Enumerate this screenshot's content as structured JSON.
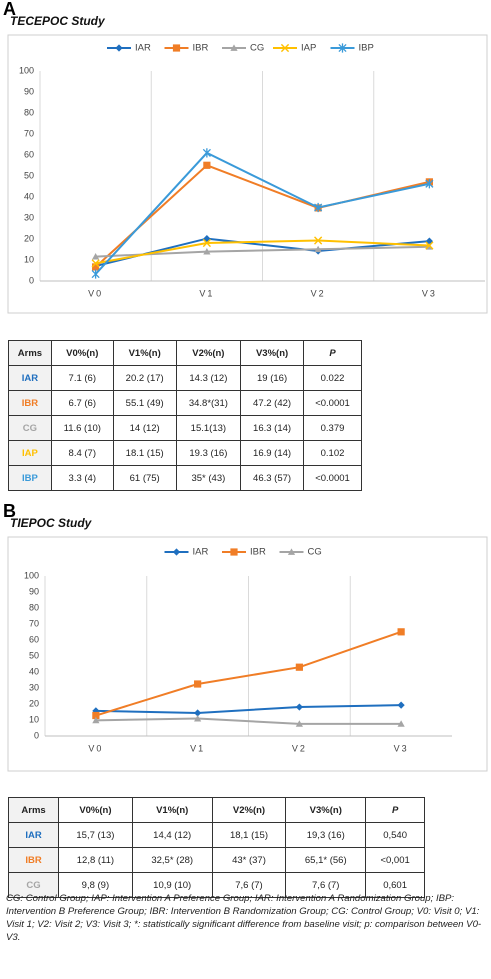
{
  "chart_data": [
    {
      "type": "line",
      "panel": "A",
      "title": "TECEPOC Study",
      "categories": [
        "V0",
        "V1",
        "V2",
        "V3"
      ],
      "series": [
        {
          "name": "IAR",
          "color": "#1f6fbf",
          "marker": "diamond",
          "values": [
            7.1,
            20.2,
            14.3,
            19
          ]
        },
        {
          "name": "IBR",
          "color": "#f07d26",
          "marker": "square",
          "values": [
            6.7,
            55.1,
            34.8,
            47.2
          ]
        },
        {
          "name": "CG",
          "color": "#a5a5a5",
          "marker": "triangle",
          "values": [
            11.6,
            14,
            15.1,
            16.3
          ]
        },
        {
          "name": "IAP",
          "color": "#ffc000",
          "marker": "x",
          "values": [
            8.4,
            18.1,
            19.3,
            16.9
          ]
        },
        {
          "name": "IBP",
          "color": "#3a9ad9",
          "marker": "star",
          "values": [
            3.3,
            61,
            35,
            46.3
          ]
        }
      ],
      "ylim": [
        0,
        100
      ],
      "yticks": [
        0,
        10,
        20,
        30,
        40,
        50,
        60,
        70,
        80,
        90,
        100
      ],
      "grid": "x",
      "legend": "top"
    },
    {
      "type": "line",
      "panel": "B",
      "title": "TIEPOC Study",
      "categories": [
        "V0",
        "V1",
        "V2",
        "V3"
      ],
      "series": [
        {
          "name": "IAR",
          "color": "#1f6fbf",
          "marker": "diamond",
          "values": [
            15.7,
            14.4,
            18.1,
            19.3
          ]
        },
        {
          "name": "IBR",
          "color": "#f07d26",
          "marker": "square",
          "values": [
            12.8,
            32.5,
            43,
            65.1
          ]
        },
        {
          "name": "CG",
          "color": "#a5a5a5",
          "marker": "triangle",
          "values": [
            9.8,
            10.9,
            7.6,
            7.6
          ]
        }
      ],
      "ylim": [
        0,
        100
      ],
      "yticks": [
        0,
        10,
        20,
        30,
        40,
        50,
        60,
        70,
        80,
        90,
        100
      ],
      "grid": "x",
      "legend": "top"
    }
  ],
  "tables": [
    {
      "header": [
        "Arms",
        "V0%(n)",
        "V1%(n)",
        "V2%(n)",
        "V3%(n)",
        "P"
      ],
      "rows": [
        [
          "IAR",
          "7.1 (6)",
          "20.2 (17)",
          "14.3 (12)",
          "19 (16)",
          "0.022"
        ],
        [
          "IBR",
          "6.7 (6)",
          "55.1 (49)",
          "34.8*(31)",
          "47.2 (42)",
          "<0.0001"
        ],
        [
          "CG",
          "11.6 (10)",
          "14 (12)",
          "15.1(13)",
          "16.3 (14)",
          "0.379"
        ],
        [
          "IAP",
          "8.4 (7)",
          "18.1 (15)",
          "19.3 (16)",
          "16.9 (14)",
          "0.102"
        ],
        [
          "IBP",
          "3.3 (4)",
          "61 (75)",
          "35* (43)",
          "46.3 (57)",
          "<0.0001"
        ]
      ]
    },
    {
      "header": [
        "Arms",
        "V0%(n)",
        "V1%(n)",
        "V2%(n)",
        "V3%(n)",
        "P"
      ],
      "rows": [
        [
          "IAR",
          "15,7 (13)",
          "14,4 (12)",
          "18,1 (15)",
          "19,3 (16)",
          "0,540"
        ],
        [
          "IBR",
          "12,8 (11)",
          "32,5* (28)",
          "43* (37)",
          "65,1* (56)",
          "<0,001"
        ],
        [
          "CG",
          "9,8 (9)",
          "10,9 (10)",
          "7,6 (7)",
          "7,6 (7)",
          "0,601"
        ]
      ]
    }
  ],
  "caption": "CG: Control Group; IAP: Intervention A Preference Group; IAR: Intervention A Randomization Group; IBP: Intervention B Preference Group; IBR: Intervention B Randomization Group; CG: Control Group; V0: Visit 0; V1: Visit 1; V2: Visit 2; V3: Visit 3; *: statistically significant difference from baseline visit; p: comparison between V0-V3."
}
